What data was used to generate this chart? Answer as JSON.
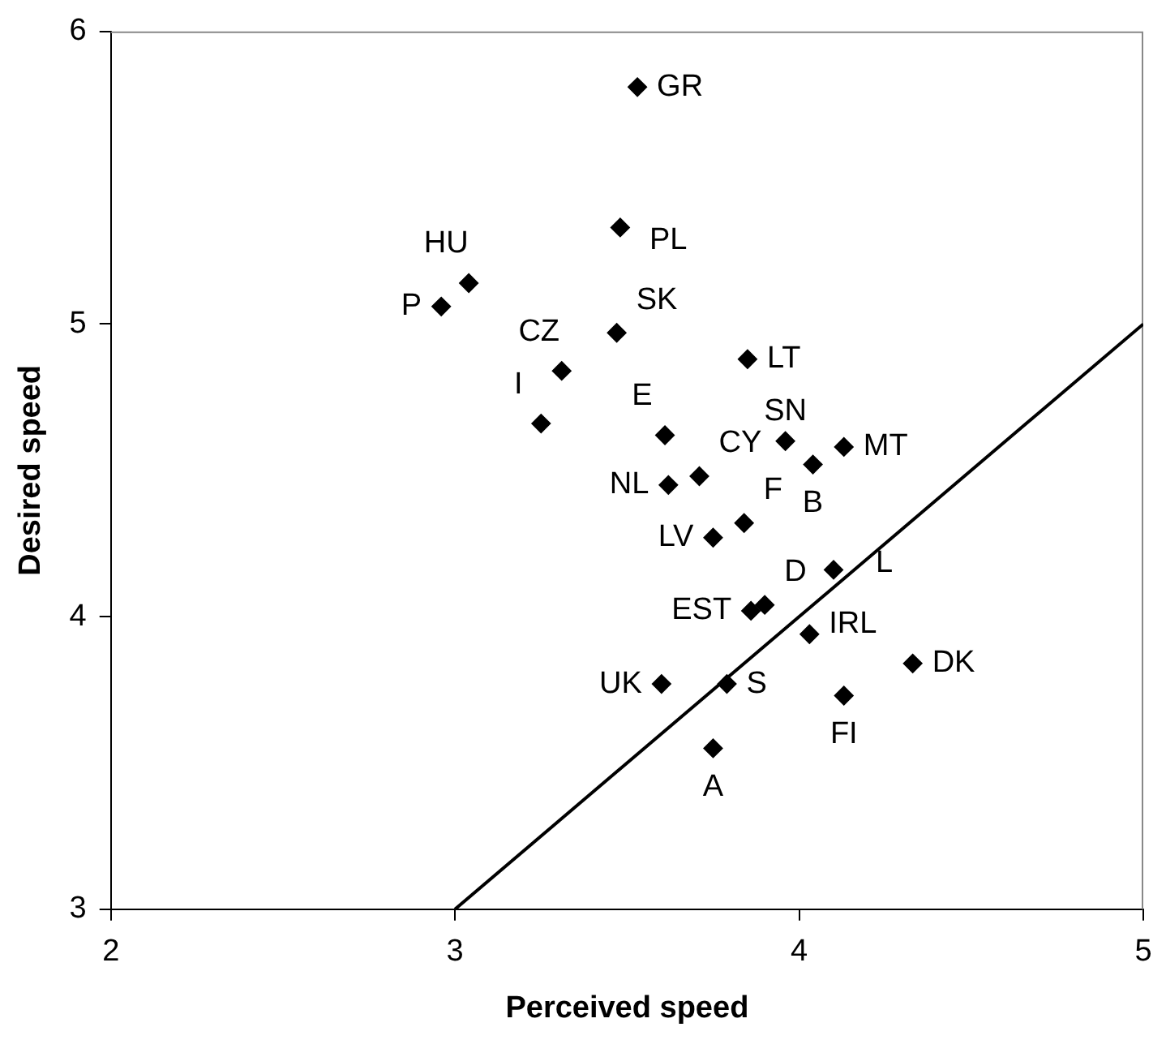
{
  "chart_data": {
    "type": "scatter",
    "xlabel": "Perceived speed",
    "ylabel": "Desired speed",
    "xlim": [
      2,
      5
    ],
    "ylim": [
      3,
      6
    ],
    "xticks": [
      2,
      3,
      4,
      5
    ],
    "yticks": [
      3,
      4,
      5,
      6
    ],
    "grid": false,
    "legend": false,
    "marker": "diamond",
    "series": [
      {
        "name": "GR",
        "color": "#000000",
        "x": [
          3.53
        ],
        "values": [
          5.81
        ]
      },
      {
        "name": "PL",
        "color": "#000000",
        "x": [
          3.48
        ],
        "values": [
          5.33
        ]
      },
      {
        "name": "HU",
        "color": "#000000",
        "x": [
          3.04
        ],
        "values": [
          5.14
        ]
      },
      {
        "name": "P",
        "color": "#000000",
        "x": [
          2.96
        ],
        "values": [
          5.06
        ]
      },
      {
        "name": "SK",
        "color": "#000000",
        "x": [
          3.47
        ],
        "values": [
          4.97
        ]
      },
      {
        "name": "CZ",
        "color": "#000000",
        "x": [
          3.31
        ],
        "values": [
          4.84
        ]
      },
      {
        "name": "LT",
        "color": "#000000",
        "x": [
          3.85
        ],
        "values": [
          4.88
        ]
      },
      {
        "name": "I",
        "color": "#000000",
        "x": [
          3.25
        ],
        "values": [
          4.66
        ]
      },
      {
        "name": "E",
        "color": "#000000",
        "x": [
          3.61
        ],
        "values": [
          4.62
        ]
      },
      {
        "name": "SN",
        "color": "#000000",
        "x": [
          3.96
        ],
        "values": [
          4.6
        ]
      },
      {
        "name": "MT",
        "color": "#000000",
        "x": [
          4.13
        ],
        "values": [
          4.58
        ]
      },
      {
        "name": "B",
        "color": "#000000",
        "x": [
          4.04
        ],
        "values": [
          4.52
        ]
      },
      {
        "name": "CY",
        "color": "#000000",
        "x": [
          3.71
        ],
        "values": [
          4.48
        ]
      },
      {
        "name": "NL",
        "color": "#000000",
        "x": [
          3.62
        ],
        "values": [
          4.45
        ]
      },
      {
        "name": "F",
        "color": "#000000",
        "x": [
          3.84
        ],
        "values": [
          4.32
        ]
      },
      {
        "name": "LV",
        "color": "#000000",
        "x": [
          3.75
        ],
        "values": [
          4.27
        ]
      },
      {
        "name": "L",
        "color": "#000000",
        "x": [
          4.1
        ],
        "values": [
          4.16
        ]
      },
      {
        "name": "D",
        "color": "#000000",
        "x": [
          3.9
        ],
        "values": [
          4.04
        ]
      },
      {
        "name": "EST",
        "color": "#000000",
        "x": [
          3.86
        ],
        "values": [
          4.02
        ]
      },
      {
        "name": "IRL",
        "color": "#000000",
        "x": [
          4.03
        ],
        "values": [
          3.94
        ]
      },
      {
        "name": "DK",
        "color": "#000000",
        "x": [
          4.33
        ],
        "values": [
          3.84
        ]
      },
      {
        "name": "UK",
        "color": "#000000",
        "x": [
          3.6
        ],
        "values": [
          3.77
        ]
      },
      {
        "name": "S",
        "color": "#000000",
        "x": [
          3.79
        ],
        "values": [
          3.77
        ]
      },
      {
        "name": "FI",
        "color": "#000000",
        "x": [
          4.13
        ],
        "values": [
          3.73
        ]
      },
      {
        "name": "A",
        "color": "#000000",
        "x": [
          3.75
        ],
        "values": [
          3.55
        ]
      },
      {
        "type": "line",
        "color": "#000000",
        "marker": "none",
        "line_style": "solid",
        "x": [
          3,
          5
        ],
        "values": [
          3,
          5
        ]
      }
    ]
  }
}
